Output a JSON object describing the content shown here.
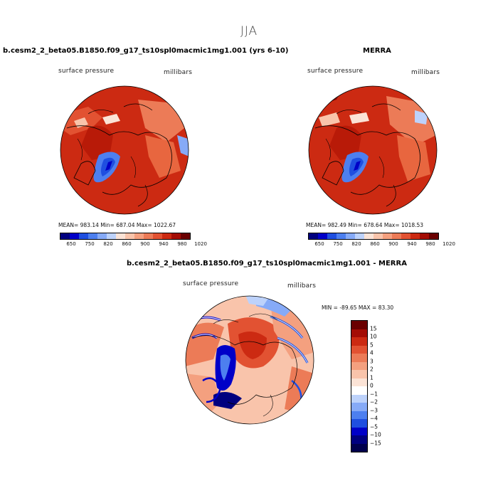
{
  "season_title": "JJA",
  "panels": {
    "model": {
      "title": "b.cesm2_2_beta05.B1850.f09_g17_ts10spl0macmic1mg1.001 (yrs 6-10)",
      "field_label": "surface pressure",
      "units": "millibars",
      "stats": "MEAN= 983.14   Min= 687.04   Max= 1022.67"
    },
    "obs": {
      "title": "MERRA",
      "field_label": "surface pressure",
      "units": "millibars",
      "stats": "MEAN= 982.49   Min= 678.64   Max= 1018.53"
    },
    "diff": {
      "title": "b.cesm2_2_beta05.B1850.f09_g17_ts10spl0macmic1mg1.001 - MERRA",
      "field_label": "surface pressure",
      "units": "millibars",
      "stats": "MIN = -89.65  MAX =  83.30"
    }
  },
  "colorbar_abs": {
    "colors": [
      "#00007f",
      "#0000c8",
      "#1f4fe0",
      "#4d7fef",
      "#86aaf7",
      "#bdd2fb",
      "#fbe3d6",
      "#f9c4ab",
      "#f4a07f",
      "#ec7b57",
      "#e25232",
      "#cc2a12",
      "#a40d05",
      "#6a0000"
    ],
    "ticks": [
      "650",
      "750",
      "820",
      "860",
      "900",
      "940",
      "980",
      "1020"
    ]
  },
  "colorbar_diff": {
    "colors": [
      "#6a0000",
      "#a40d05",
      "#cc2a12",
      "#e25232",
      "#ec7b57",
      "#f4a07f",
      "#f9c4ab",
      "#fbe3d6",
      "#ffffff",
      "#bdd2fb",
      "#86aaf7",
      "#4d7fef",
      "#1f4fe0",
      "#0000c8",
      "#00007f",
      "#00004d"
    ],
    "ticks": [
      "15",
      "10",
      "5",
      "4",
      "3",
      "2",
      "1",
      "0",
      "−1",
      "−2",
      "−3",
      "−4",
      "−5",
      "−10",
      "−15"
    ]
  }
}
